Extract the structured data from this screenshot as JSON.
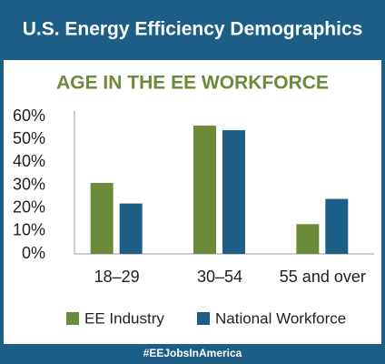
{
  "chart_data": {
    "type": "bar",
    "title": "U.S. Energy Efficiency Demographics",
    "subtitle": "AGE IN THE EE WORKFORCE",
    "footer": "#EEJobsInAmerica",
    "categories": [
      "18–29",
      "30–54",
      "55 and over"
    ],
    "series": [
      {
        "name": "EE Industry",
        "color": "#6b8a3a",
        "values": [
          31,
          56,
          13
        ]
      },
      {
        "name": "National Workforce",
        "color": "#1c5e86",
        "values": [
          22,
          54,
          24
        ]
      }
    ],
    "ylim": [
      0,
      60
    ],
    "yticks": [
      {
        "value": 0,
        "label": "0%"
      },
      {
        "value": 10,
        "label": "10%"
      },
      {
        "value": 20,
        "label": "20%"
      },
      {
        "value": 30,
        "label": "30%"
      },
      {
        "value": 40,
        "label": "40%"
      },
      {
        "value": 50,
        "label": "50%"
      },
      {
        "value": 60,
        "label": "60%"
      }
    ],
    "grid": false,
    "legend": "bottom"
  }
}
